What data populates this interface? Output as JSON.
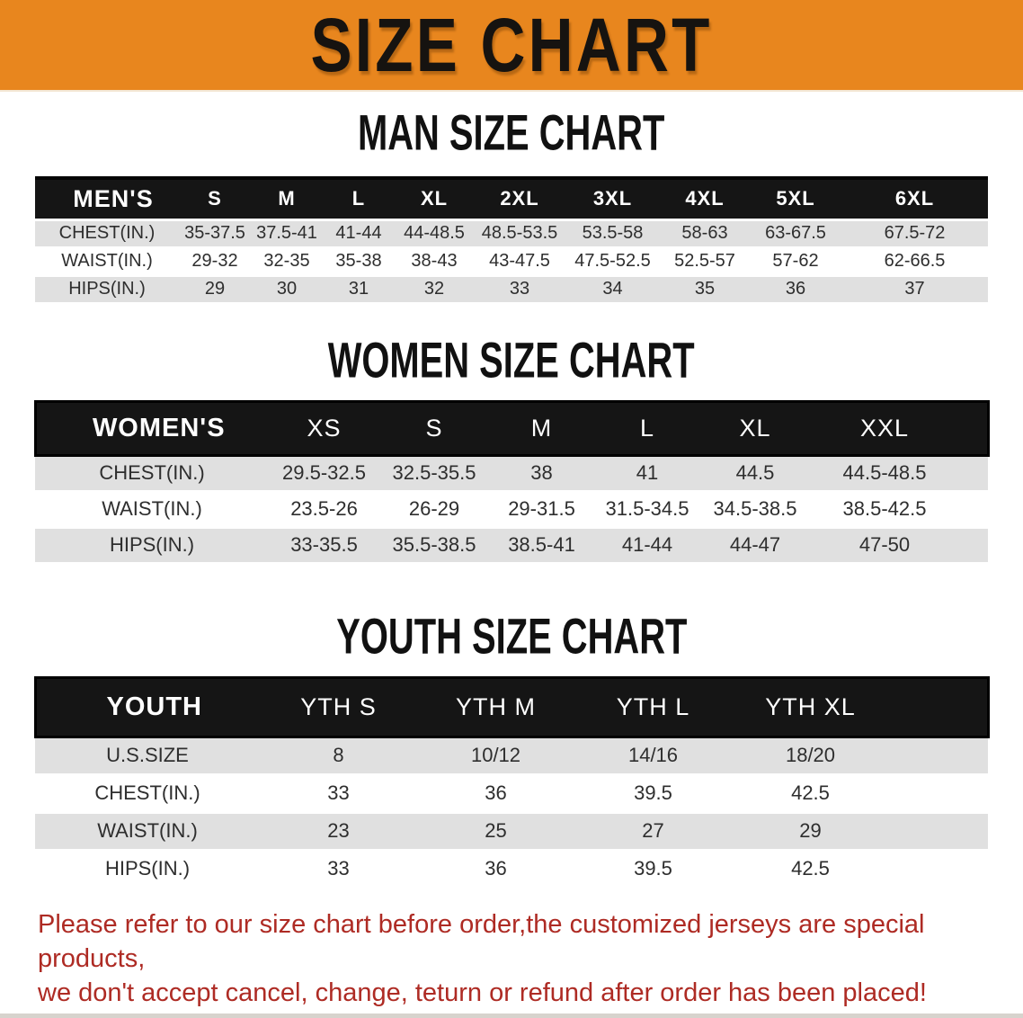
{
  "banner": {
    "title": "SIZE CHART",
    "bg_color": "#E8861E"
  },
  "sections": [
    {
      "title": "MAN SIZE CHART",
      "header_label": "MEN'S",
      "columns": [
        "S",
        "M",
        "L",
        "XL",
        "2XL",
        "3XL",
        "4XL",
        "5XL",
        "6XL"
      ],
      "rows": [
        {
          "label": "CHEST(IN.)",
          "values": [
            "35-37.5",
            "37.5-41",
            "41-44",
            "44-48.5",
            "48.5-53.5",
            "53.5-58",
            "58-63",
            "63-67.5",
            "67.5-72"
          ]
        },
        {
          "label": "WAIST(IN.)",
          "values": [
            "29-32",
            "32-35",
            "35-38",
            "38-43",
            "43-47.5",
            "47.5-52.5",
            "52.5-57",
            "57-62",
            "62-66.5"
          ]
        },
        {
          "label": "HIPS(IN.)",
          "values": [
            "29",
            "30",
            "31",
            "32",
            "33",
            "34",
            "35",
            "36",
            "37"
          ]
        }
      ]
    },
    {
      "title": "WOMEN SIZE CHART",
      "header_label": "WOMEN'S",
      "columns": [
        "XS",
        "S",
        "M",
        "L",
        "XL",
        "XXL"
      ],
      "rows": [
        {
          "label": "CHEST(IN.)",
          "values": [
            "29.5-32.5",
            "32.5-35.5",
            "38",
            "41",
            "44.5",
            "44.5-48.5"
          ]
        },
        {
          "label": "WAIST(IN.)",
          "values": [
            "23.5-26",
            "26-29",
            "29-31.5",
            "31.5-34.5",
            "34.5-38.5",
            "38.5-42.5"
          ]
        },
        {
          "label": "HIPS(IN.)",
          "values": [
            "33-35.5",
            "35.5-38.5",
            "38.5-41",
            "41-44",
            "44-47",
            "47-50"
          ]
        }
      ]
    },
    {
      "title": "YOUTH SIZE CHART",
      "header_label": "YOUTH",
      "columns": [
        "YTH S",
        "YTH M",
        "YTH L",
        "YTH XL"
      ],
      "rows": [
        {
          "label": "U.S.SIZE",
          "values": [
            "8",
            "10/12",
            "14/16",
            "18/20"
          ]
        },
        {
          "label": "CHEST(IN.)",
          "values": [
            "33",
            "36",
            "39.5",
            "42.5"
          ]
        },
        {
          "label": "WAIST(IN.)",
          "values": [
            "23",
            "25",
            "27",
            "29"
          ]
        },
        {
          "label": "HIPS(IN.)",
          "values": [
            "33",
            "36",
            "39.5",
            "42.5"
          ]
        }
      ]
    }
  ],
  "footer": {
    "line1": "Please refer to our size chart before order,the customized jerseys are special products,",
    "line2": "we don't accept cancel, change, teturn or refund after order has been placed!",
    "color": "#AE2B24"
  }
}
